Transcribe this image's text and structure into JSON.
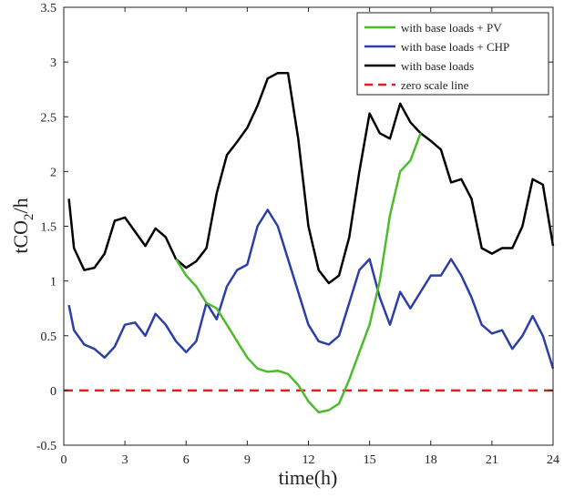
{
  "chart_data": {
    "type": "line",
    "xlabel": "time(h)",
    "ylabel": "tCO2/h",
    "ylabel_main": "tCO",
    "ylabel_sub": "2",
    "ylabel_tail": "/h",
    "xlim": [
      0,
      24
    ],
    "ylim": [
      -0.5,
      3.5
    ],
    "xticks": [
      0,
      3,
      6,
      9,
      12,
      15,
      18,
      21,
      24
    ],
    "yticks": [
      -0.5,
      0,
      0.5,
      1,
      1.5,
      2,
      2.5,
      3,
      3.5
    ],
    "xtick_labels": [
      "0",
      "3",
      "6",
      "9",
      "12",
      "15",
      "18",
      "21",
      "24"
    ],
    "ytick_labels": [
      "-0.5",
      "0",
      "0.5",
      "1",
      "1.5",
      "2",
      "2.5",
      "3",
      "3.5"
    ],
    "grid": false,
    "legend_position": "top-right",
    "series": [
      {
        "name": "with base loads + PV",
        "color": "#4cbb2c",
        "style": "solid",
        "x": [
          5.5,
          6,
          6.5,
          7,
          7.5,
          8,
          8.5,
          9,
          9.5,
          10,
          10.5,
          11,
          11.5,
          12,
          12.5,
          13,
          13.5,
          14,
          14.5,
          15,
          15.5,
          16,
          16.5,
          17,
          17.5
        ],
        "y": [
          1.2,
          1.05,
          0.95,
          0.8,
          0.75,
          0.6,
          0.45,
          0.3,
          0.2,
          0.17,
          0.18,
          0.15,
          0.05,
          -0.1,
          -0.2,
          -0.18,
          -0.12,
          0.1,
          0.35,
          0.6,
          1.0,
          1.6,
          2.0,
          2.1,
          2.35
        ]
      },
      {
        "name": "with base loads + CHP",
        "color": "#2b3fa6",
        "style": "solid",
        "x": [
          0.25,
          0.5,
          1,
          1.5,
          2,
          2.5,
          3,
          3.5,
          4,
          4.5,
          5,
          5.5,
          6,
          6.5,
          7,
          7.5,
          8,
          8.5,
          9,
          9.5,
          10,
          10.5,
          11,
          11.5,
          12,
          12.5,
          13,
          13.5,
          14,
          14.5,
          15,
          15.5,
          16,
          16.5,
          17,
          17.5,
          18,
          18.5,
          19,
          19.5,
          20,
          20.5,
          21,
          21.5,
          22,
          22.5,
          23,
          23.5,
          24
        ],
        "y": [
          0.78,
          0.55,
          0.42,
          0.38,
          0.3,
          0.4,
          0.6,
          0.62,
          0.5,
          0.7,
          0.6,
          0.45,
          0.35,
          0.45,
          0.8,
          0.65,
          0.95,
          1.1,
          1.15,
          1.5,
          1.65,
          1.5,
          1.2,
          0.9,
          0.6,
          0.45,
          0.42,
          0.5,
          0.8,
          1.1,
          1.2,
          0.85,
          0.6,
          0.9,
          0.75,
          0.9,
          1.05,
          1.05,
          1.2,
          1.05,
          0.85,
          0.6,
          0.52,
          0.55,
          0.38,
          0.5,
          0.68,
          0.5,
          0.2
        ]
      },
      {
        "name": "with base loads",
        "color": "#000000",
        "style": "solid",
        "x": [
          0.25,
          0.5,
          1,
          1.5,
          2,
          2.5,
          3,
          3.5,
          4,
          4.5,
          5,
          5.5,
          6,
          6.5,
          7,
          7.5,
          8,
          8.5,
          9,
          9.5,
          10,
          10.5,
          11,
          11.5,
          12,
          12.5,
          13,
          13.5,
          14,
          14.5,
          15,
          15.5,
          16,
          16.5,
          17,
          17.5,
          18,
          18.5,
          19,
          19.5,
          20,
          20.5,
          21,
          21.5,
          22,
          22.5,
          23,
          23.5,
          24
        ],
        "y": [
          1.75,
          1.3,
          1.1,
          1.12,
          1.25,
          1.55,
          1.58,
          1.45,
          1.32,
          1.48,
          1.4,
          1.2,
          1.12,
          1.18,
          1.3,
          1.8,
          2.15,
          2.27,
          2.4,
          2.6,
          2.85,
          2.9,
          2.9,
          2.3,
          1.5,
          1.1,
          0.98,
          1.05,
          1.4,
          2.0,
          2.53,
          2.35,
          2.3,
          2.62,
          2.45,
          2.35,
          2.28,
          2.2,
          1.9,
          1.93,
          1.75,
          1.3,
          1.25,
          1.3,
          1.3,
          1.5,
          1.93,
          1.88,
          1.32
        ]
      },
      {
        "name": "zero scale line",
        "color": "#e02020",
        "style": "dashed",
        "x": [
          0,
          24
        ],
        "y": [
          0,
          0
        ]
      }
    ]
  }
}
